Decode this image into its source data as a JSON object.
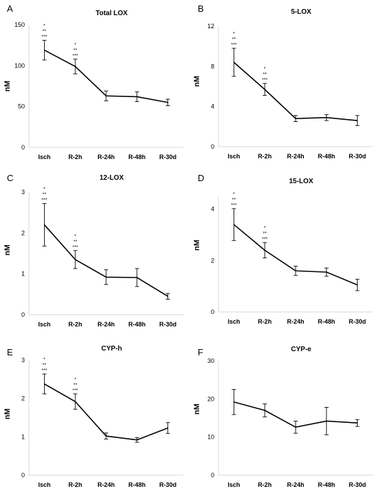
{
  "chart_data": [
    {
      "type": "line",
      "panel": "A",
      "title": "Total LOX",
      "ylabel": "nM",
      "ylim": [
        0,
        150
      ],
      "yticks": [
        0,
        50,
        100,
        150
      ],
      "categories": [
        "Isch",
        "R-2h",
        "R-24h",
        "R-48h",
        "R-30d"
      ],
      "values": [
        119,
        99,
        63,
        62,
        55
      ],
      "errors": [
        12,
        9,
        6,
        6,
        4
      ],
      "annotations": [
        [
          "*",
          "**",
          "***"
        ],
        [
          "*",
          "**",
          "***"
        ],
        [],
        [],
        []
      ]
    },
    {
      "type": "line",
      "panel": "B",
      "title": "5-LOX",
      "ylabel": "nM",
      "ylim": [
        0,
        12
      ],
      "yticks": [
        0,
        4,
        8,
        12
      ],
      "categories": [
        "Isch",
        "R-2h",
        "R-24h",
        "R-48h",
        "R-30d"
      ],
      "values": [
        8.4,
        5.7,
        2.8,
        2.9,
        2.6
      ],
      "errors": [
        1.4,
        0.6,
        0.3,
        0.3,
        0.5
      ],
      "annotations": [
        [
          "*",
          "**",
          "***"
        ],
        [
          "*",
          "**",
          "***"
        ],
        [],
        [],
        []
      ]
    },
    {
      "type": "line",
      "panel": "C",
      "title": "12-LOX",
      "ylabel": "nM",
      "ylim": [
        0,
        3
      ],
      "yticks": [
        0,
        1,
        2,
        3
      ],
      "categories": [
        "Isch",
        "R-2h",
        "R-24h",
        "R-48h",
        "R-30d"
      ],
      "values": [
        2.2,
        1.35,
        0.92,
        0.91,
        0.45
      ],
      "errors": [
        0.52,
        0.22,
        0.18,
        0.22,
        0.07
      ],
      "annotations": [
        [
          "*",
          "**",
          "***"
        ],
        [
          "*",
          "**",
          "***"
        ],
        [],
        [],
        []
      ]
    },
    {
      "type": "line",
      "panel": "D",
      "title": "15-LOX",
      "ylabel": "nM",
      "ylim": [
        0,
        4.5
      ],
      "yticks": [
        0,
        2,
        4
      ],
      "categories": [
        "Isch",
        "R-2h",
        "R-24h",
        "R-48h",
        "R-30d"
      ],
      "values": [
        3.4,
        2.4,
        1.6,
        1.55,
        1.05
      ],
      "errors": [
        0.62,
        0.3,
        0.18,
        0.16,
        0.22
      ],
      "annotations": [
        [
          "*",
          "**",
          "***"
        ],
        [
          "*",
          "**",
          "***"
        ],
        [],
        [],
        []
      ]
    },
    {
      "type": "line",
      "panel": "E",
      "title": "CYP-h",
      "ylabel": "nM",
      "ylim": [
        0,
        3
      ],
      "yticks": [
        0,
        1,
        2,
        3
      ],
      "categories": [
        "Isch",
        "R-2h",
        "R-24h",
        "R-48h",
        "R-30d"
      ],
      "values": [
        2.38,
        1.92,
        1.02,
        0.92,
        1.23
      ],
      "errors": [
        0.26,
        0.2,
        0.08,
        0.06,
        0.14
      ],
      "annotations": [
        [
          "*",
          "**",
          "***"
        ],
        [
          "*",
          "**",
          "***"
        ],
        [],
        [],
        []
      ]
    },
    {
      "type": "line",
      "panel": "F",
      "title": "CYP-e",
      "ylabel": "nM",
      "ylim": [
        0,
        30
      ],
      "yticks": [
        0,
        10,
        20,
        30
      ],
      "categories": [
        "Isch",
        "R-2h",
        "R-24h",
        "R-48h",
        "R-30d"
      ],
      "values": [
        19.2,
        17,
        12.6,
        14.2,
        13.7
      ],
      "errors": [
        3.3,
        1.7,
        1.6,
        3.6,
        0.9
      ],
      "annotations": [
        [],
        [],
        [],
        [],
        []
      ]
    }
  ],
  "colors": {
    "line": "#000000",
    "axis": "#d9d9d9",
    "text": "#000000"
  }
}
